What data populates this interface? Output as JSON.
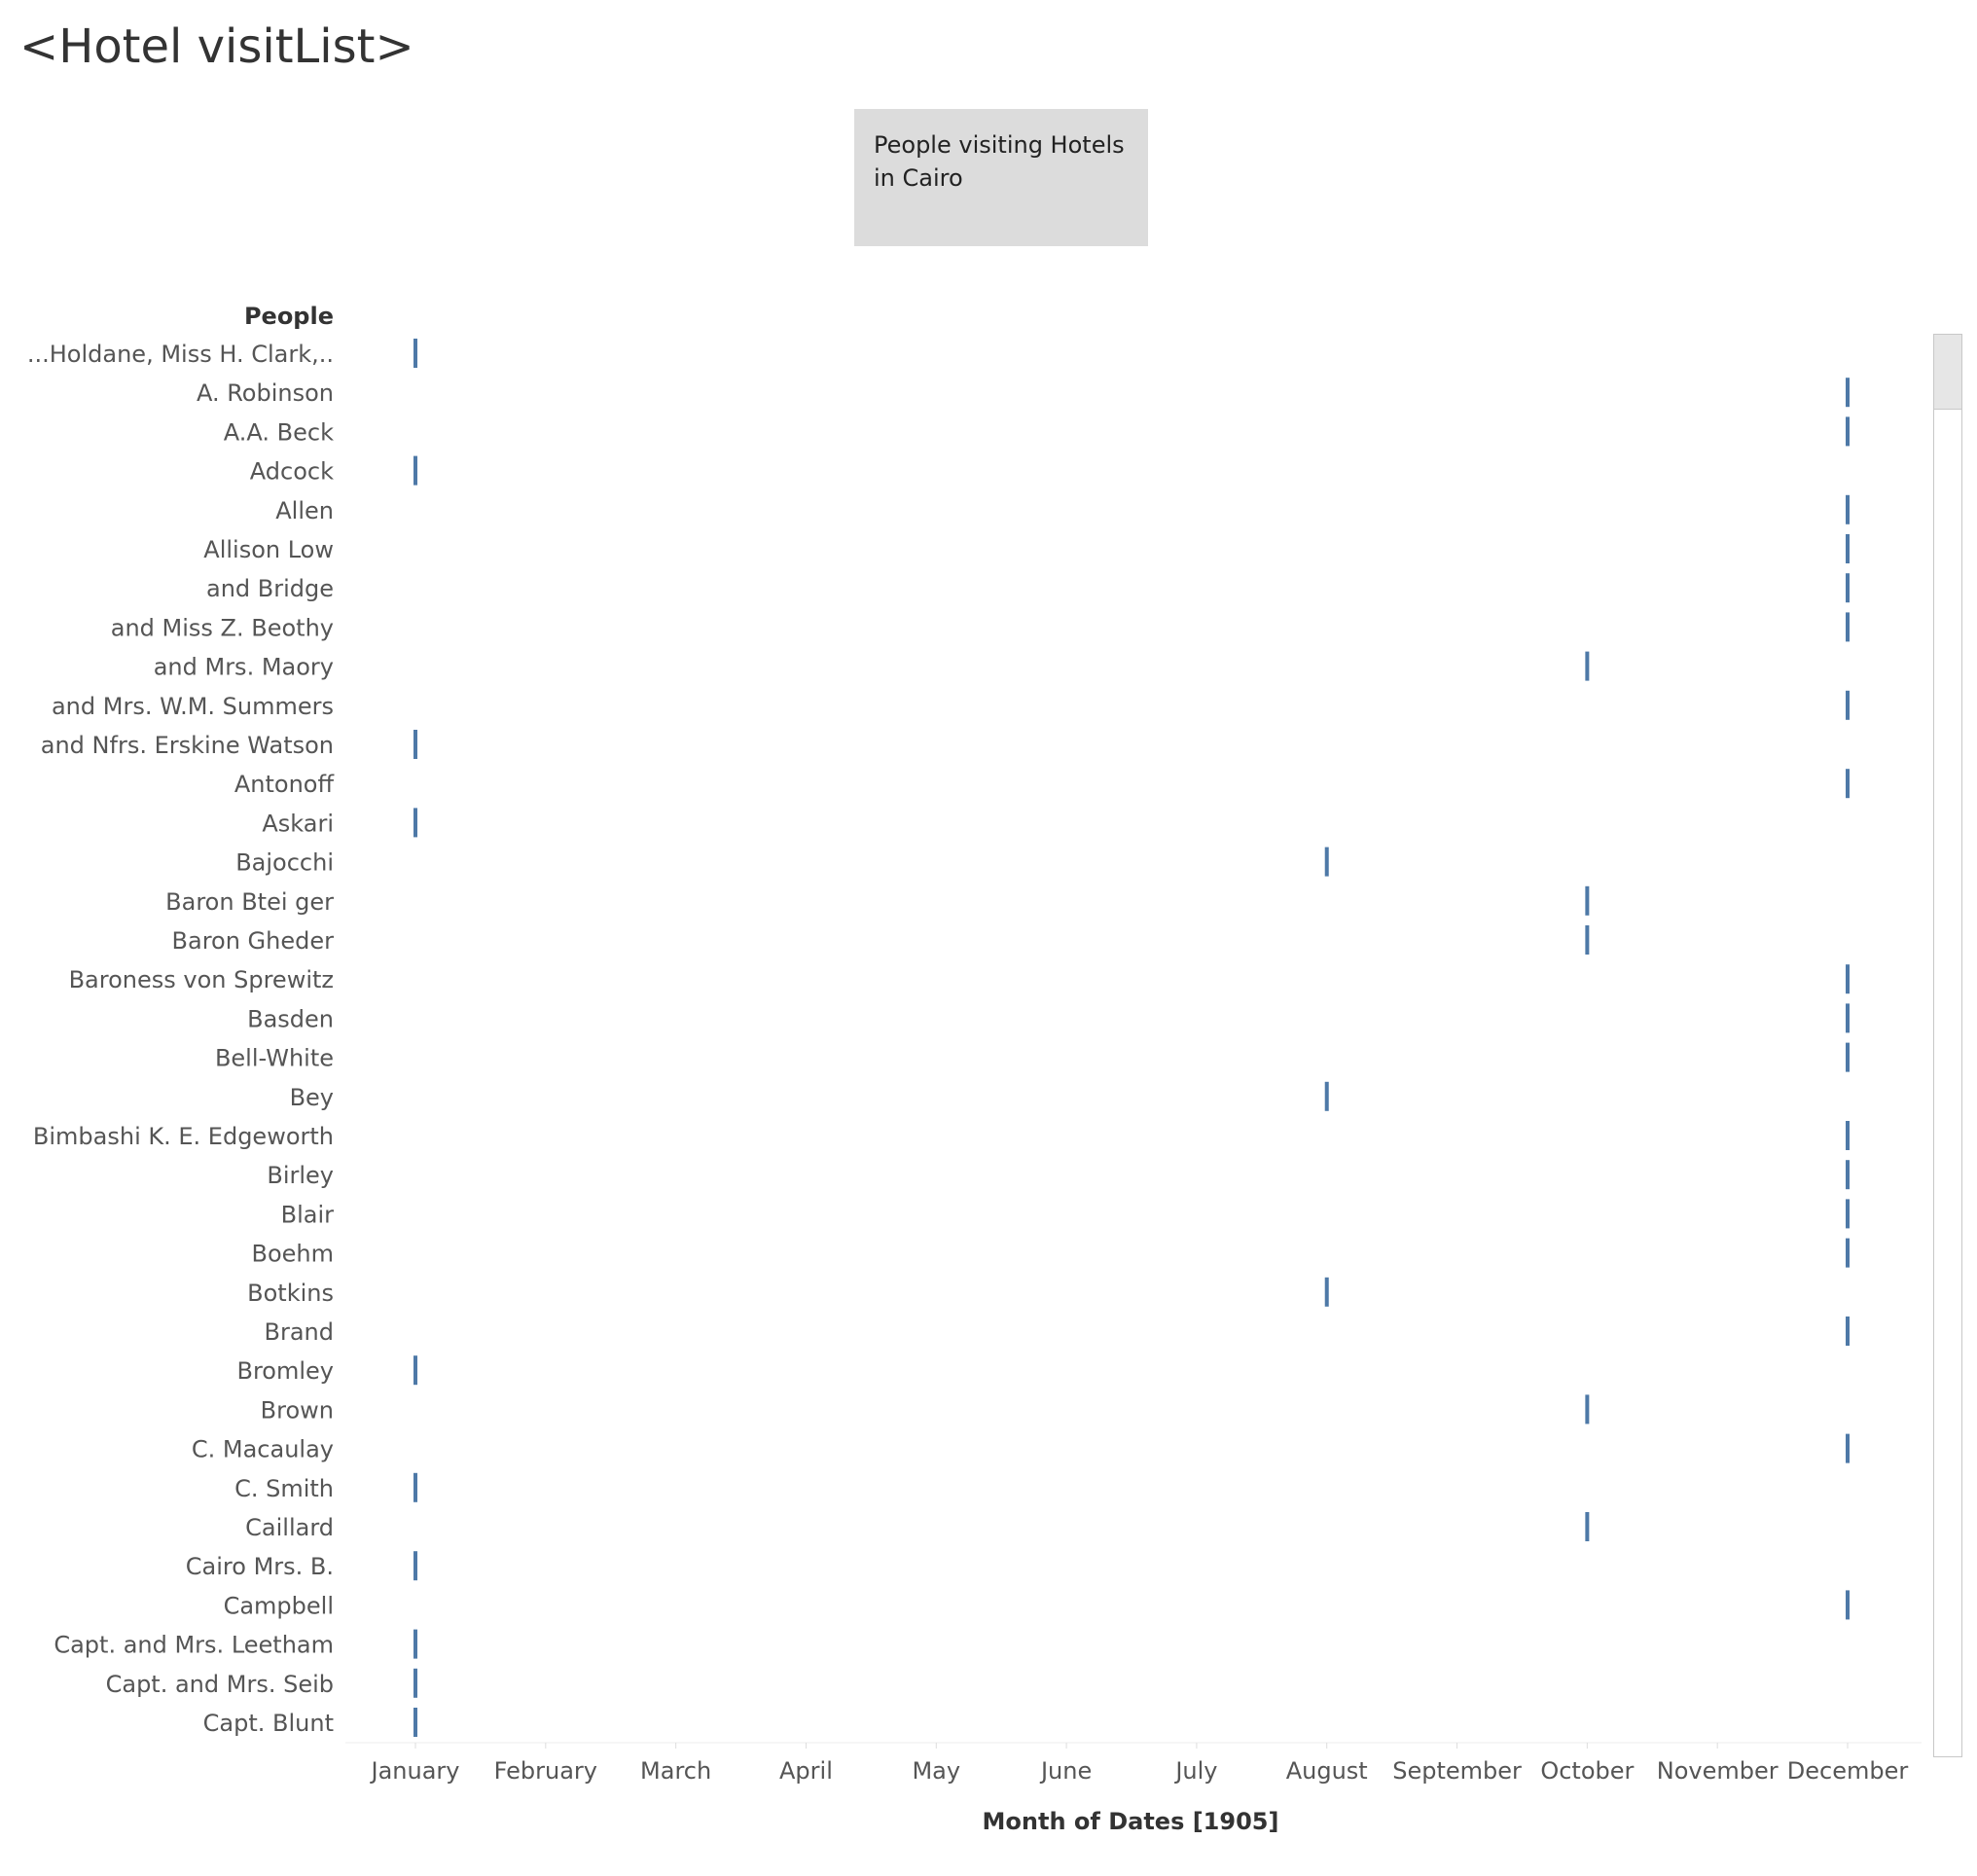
{
  "page_title": "<Hotel visitList>",
  "caption": "People visiting Hotels in Cairo",
  "chart_data": {
    "type": "scatter",
    "mark": "tick",
    "ylabel": "People",
    "xlabel": "Month of Dates [1905]",
    "x_categories": [
      "January",
      "February",
      "March",
      "April",
      "May",
      "June",
      "July",
      "August",
      "September",
      "October",
      "November",
      "December"
    ],
    "mark_color": "#4e79a7",
    "grid": false,
    "points": [
      {
        "person": "...Holdane, Miss H. Clark,..",
        "month": "January"
      },
      {
        "person": "A. Robinson",
        "month": "December"
      },
      {
        "person": "A.A. Beck",
        "month": "December"
      },
      {
        "person": "Adcock",
        "month": "January"
      },
      {
        "person": "Allen",
        "month": "December"
      },
      {
        "person": "Allison Low",
        "month": "December"
      },
      {
        "person": "and Bridge",
        "month": "December"
      },
      {
        "person": "and Miss Z. Beothy",
        "month": "December"
      },
      {
        "person": "and Mrs. Maory",
        "month": "October"
      },
      {
        "person": "and Mrs. W.M. Summers",
        "month": "December"
      },
      {
        "person": "and Nfrs. Erskine Watson",
        "month": "January"
      },
      {
        "person": "Antonoff",
        "month": "December"
      },
      {
        "person": "Askari",
        "month": "January"
      },
      {
        "person": "Bajocchi",
        "month": "August"
      },
      {
        "person": "Baron Btei ger",
        "month": "October"
      },
      {
        "person": "Baron Gheder",
        "month": "October"
      },
      {
        "person": "Baroness von Sprewitz",
        "month": "December"
      },
      {
        "person": "Basden",
        "month": "December"
      },
      {
        "person": "Bell-White",
        "month": "December"
      },
      {
        "person": "Bey",
        "month": "August"
      },
      {
        "person": "Bimbashi K. E. Edgeworth",
        "month": "December"
      },
      {
        "person": "Birley",
        "month": "December"
      },
      {
        "person": "Blair",
        "month": "December"
      },
      {
        "person": "Boehm",
        "month": "December"
      },
      {
        "person": "Botkins",
        "month": "August"
      },
      {
        "person": "Brand",
        "month": "December"
      },
      {
        "person": "Bromley",
        "month": "January"
      },
      {
        "person": "Brown",
        "month": "October"
      },
      {
        "person": "C. Macaulay",
        "month": "December"
      },
      {
        "person": "C. Smith",
        "month": "January"
      },
      {
        "person": "Caillard",
        "month": "October"
      },
      {
        "person": "Cairo Mrs. B.",
        "month": "January"
      },
      {
        "person": "Campbell",
        "month": "December"
      },
      {
        "person": "Capt. and Mrs. Leetham",
        "month": "January"
      },
      {
        "person": "Capt. and Mrs. Seib",
        "month": "January"
      },
      {
        "person": "Capt. Blunt",
        "month": "January"
      }
    ]
  }
}
